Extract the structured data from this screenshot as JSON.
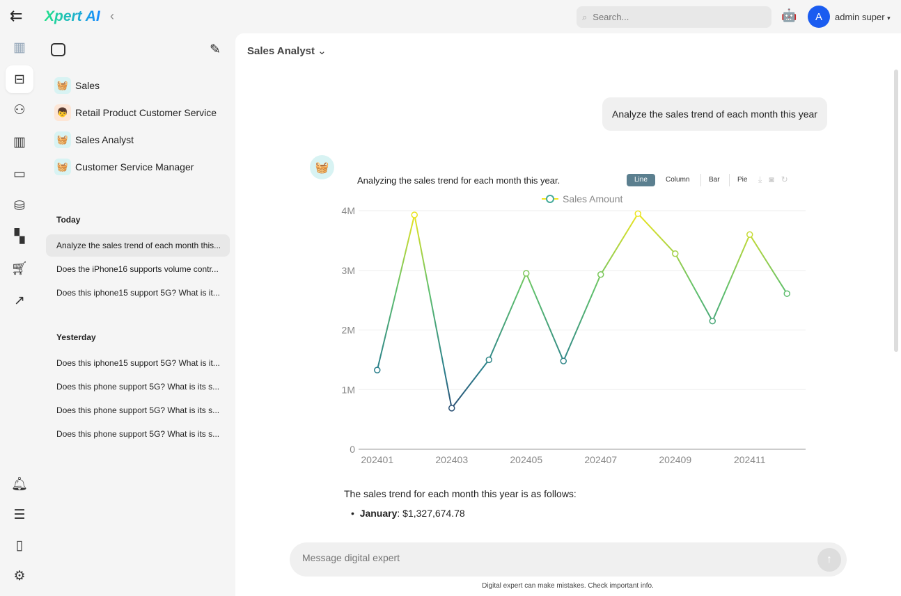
{
  "app": {
    "logo": "Xpert AI"
  },
  "header": {
    "search_placeholder": "Search...",
    "user_initial": "A",
    "user_name": "admin super"
  },
  "rail": {
    "icons": [
      "building-icon",
      "robot-icon",
      "users-gear-icon",
      "chart-bar-icon",
      "image-message-icon",
      "database-icon",
      "dashboard-icon",
      "cart-icon",
      "trend-icon",
      "bell-icon",
      "sliders-icon",
      "remote-icon",
      "gear-icon"
    ]
  },
  "sidebar": {
    "agents": [
      {
        "label": "Sales",
        "avatar": "🧺"
      },
      {
        "label": "Retail Product Customer Service",
        "avatar": "👦"
      },
      {
        "label": "Sales Analyst",
        "avatar": "🧺"
      },
      {
        "label": "Customer Service Manager",
        "avatar": "🧺"
      }
    ],
    "today_label": "Today",
    "today": [
      "Analyze the sales trend of each month this...",
      "Does the iPhone16 supports volume contr...",
      "Does this iphone15 support 5G? What is it..."
    ],
    "yesterday_label": "Yesterday",
    "yesterday": [
      "Does this iphone15 support 5G? What is it...",
      "Does this phone support 5G? What is its s...",
      "Does this phone support 5G? What is its s...",
      "Does this phone support 5G? What is its s..."
    ]
  },
  "main": {
    "title": "Sales Analyst",
    "user_message": "Analyze the sales trend of each month this year",
    "assistant_intro": "Analyzing the sales trend for each month this year.",
    "chart_tabs": [
      "Line",
      "Column",
      "Bar",
      "Pie"
    ],
    "active_tab": "Line",
    "summary": "The sales trend for each month this year is as follows:",
    "bullet_month": "January",
    "bullet_value": ": $1,327,674.78",
    "input_placeholder": "Message digital expert",
    "disclaimer": "Digital expert can make mistakes. Check important info."
  },
  "chart_data": {
    "type": "line",
    "legend": "Sales Amount",
    "legend_position": "top",
    "categories": [
      "202401",
      "202402",
      "202403",
      "202404",
      "202405",
      "202406",
      "202407",
      "202408",
      "202409",
      "202410",
      "202411",
      "202412"
    ],
    "xtick_labels": [
      "202401",
      "202403",
      "202405",
      "202407",
      "202409",
      "202411"
    ],
    "values": [
      1327674.78,
      3930000,
      690000,
      1500000,
      2950000,
      1480000,
      2930000,
      3950000,
      3280000,
      2150000,
      3600000,
      2610000
    ],
    "yticks": [
      "0",
      "1M",
      "2M",
      "3M",
      "4M"
    ],
    "ylim": [
      0,
      4000000
    ],
    "grid": true,
    "color_scale": [
      "#2b1d5a",
      "#2a7f8c",
      "#5fc06c",
      "#f2e61c"
    ]
  }
}
